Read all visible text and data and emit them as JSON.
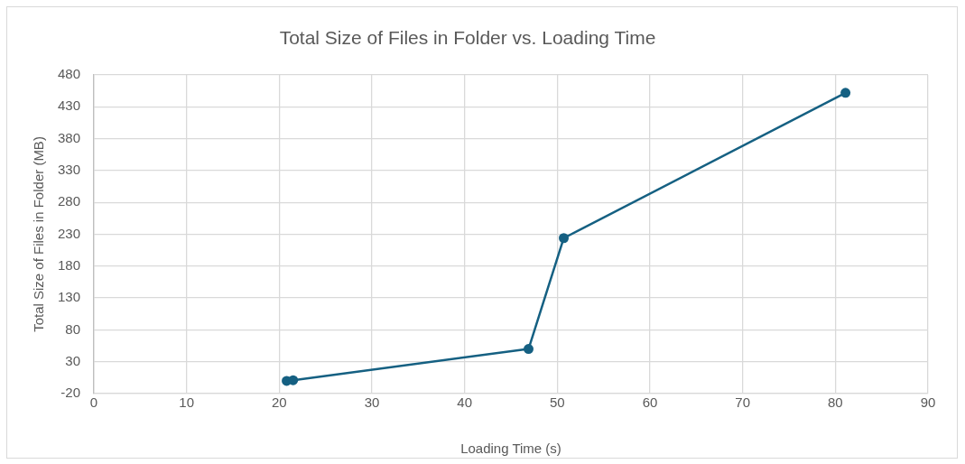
{
  "chart_data": {
    "type": "line",
    "title": "Total Size of Files in Folder vs. Loading Time",
    "xlabel": "Loading Time (s)",
    "ylabel": "Total Size of Files in Folder (MB)",
    "x": [
      20.8,
      21.5,
      46.9,
      50.7,
      81.1
    ],
    "series": [
      {
        "color": "#156082",
        "values": [
          0,
          1,
          50,
          224,
          452
        ]
      }
    ],
    "xlim": [
      0,
      90
    ],
    "xticks": [
      0,
      10,
      20,
      30,
      40,
      50,
      60,
      70,
      80,
      90
    ],
    "ylim": [
      -20,
      480
    ],
    "yticks": [
      -20,
      30,
      80,
      130,
      180,
      230,
      280,
      330,
      380,
      430,
      480
    ],
    "grid": true,
    "legend": false,
    "marker": "circle",
    "line_style": "solid"
  }
}
